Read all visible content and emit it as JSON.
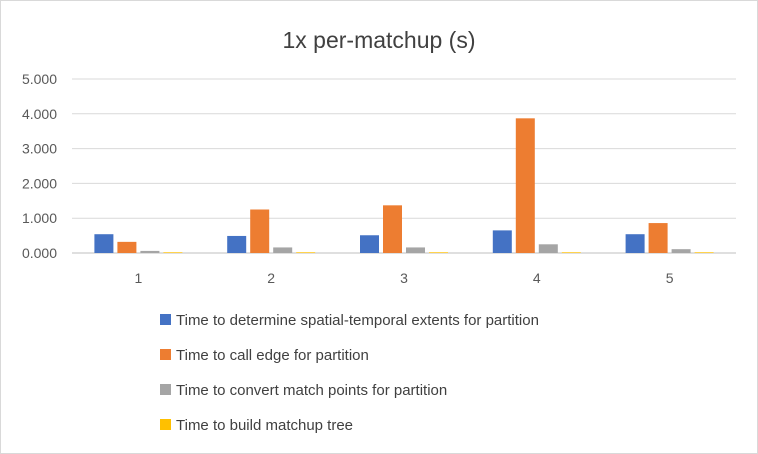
{
  "chart_data": {
    "type": "bar",
    "title": "1x per-matchup (s)",
    "xlabel": "",
    "ylabel": "",
    "categories": [
      "1",
      "2",
      "3",
      "4",
      "5"
    ],
    "ylim": [
      0,
      5
    ],
    "yticks": [
      0,
      1,
      2,
      3,
      4,
      5
    ],
    "ytick_labels": [
      "0.000",
      "1.000",
      "2.000",
      "3.000",
      "4.000",
      "5.000"
    ],
    "grid": true,
    "legend_position": "bottom",
    "series": [
      {
        "name": "Time to determine spatial-temporal extents for partition",
        "color": "#4472c4",
        "values": [
          0.54,
          0.49,
          0.51,
          0.65,
          0.54
        ]
      },
      {
        "name": "Time to call edge for partition",
        "color": "#ed7d31",
        "values": [
          0.32,
          1.25,
          1.37,
          3.87,
          0.86
        ]
      },
      {
        "name": "Time to convert match points for partition",
        "color": "#a5a5a5",
        "values": [
          0.06,
          0.16,
          0.16,
          0.25,
          0.11
        ]
      },
      {
        "name": "Time to build matchup tree",
        "color": "#ffc000",
        "values": [
          0.02,
          0.02,
          0.02,
          0.02,
          0.02
        ]
      }
    ]
  }
}
